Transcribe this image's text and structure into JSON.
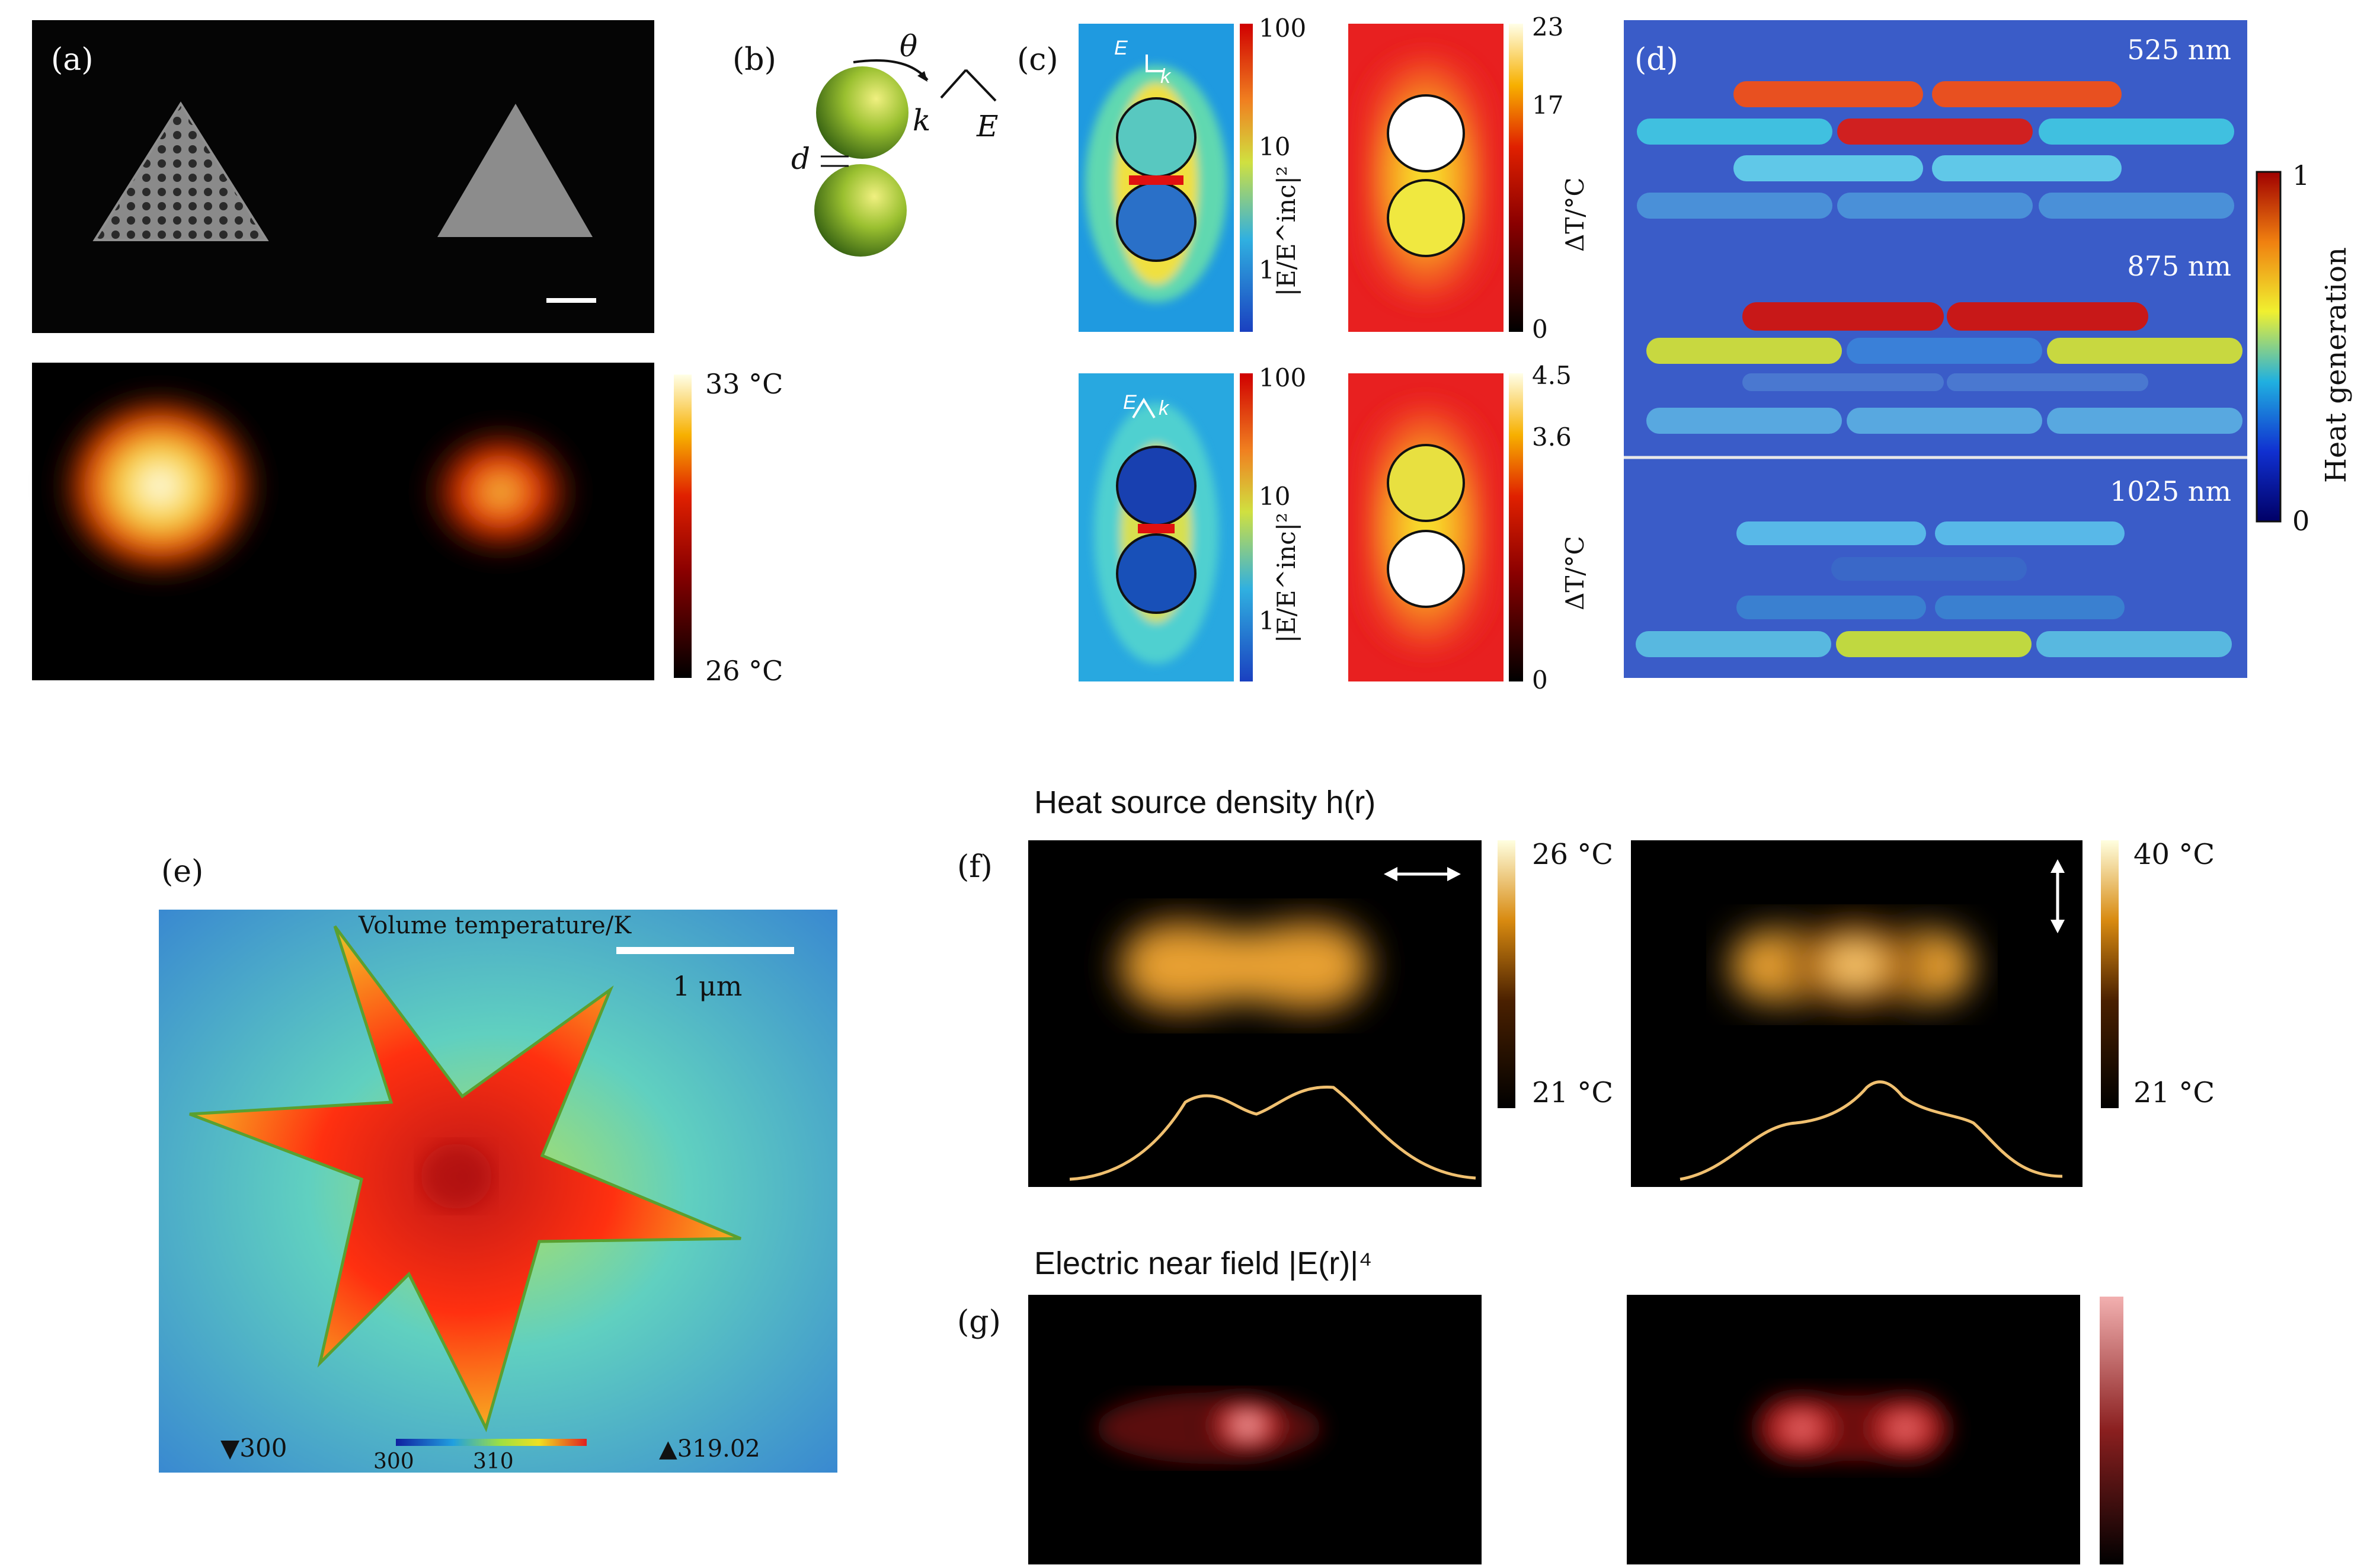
{
  "panels": {
    "a": {
      "label": "(a)",
      "colorbar": {
        "max": "33 °C",
        "min": "26 °C"
      }
    },
    "b": {
      "label": "(b)",
      "theta": "θ",
      "k": "k",
      "E": "E",
      "d": "d"
    },
    "c": {
      "label": "(c)",
      "top": {
        "arrow_E": "E",
        "arrow_k": "k",
        "field_ticks": [
          "100",
          "10",
          "1"
        ],
        "field_axis": "|E/E^inc|²",
        "temp_ticks": [
          "23",
          "17",
          "0"
        ],
        "temp_axis": "ΔT/°C"
      },
      "bottom": {
        "arrow_E": "E",
        "arrow_k": "k",
        "field_ticks": [
          "100",
          "10",
          "1"
        ],
        "field_axis": "|E/E^inc|²",
        "temp_ticks": [
          "4.5",
          "3.6",
          "0"
        ],
        "temp_axis": "ΔT/°C"
      }
    },
    "d": {
      "label": "(d)",
      "wavelengths": [
        "525 nm",
        "875 nm",
        "1025 nm"
      ],
      "colorbar": {
        "max": "1",
        "min": "0",
        "title": "Heat generation"
      }
    },
    "e": {
      "label": "(e)",
      "title": "Volume temperature/K",
      "scalebar": "1 μm",
      "min_marker": "▼300",
      "max_marker": "▲319.02",
      "cb_ticks": [
        "300",
        "310"
      ]
    },
    "f": {
      "label": "(f)",
      "title": "Heat source density h(r)",
      "left_colorbar": {
        "max": "26 °C",
        "min": "21 °C"
      },
      "right_colorbar": {
        "max": "40 °C",
        "min": "21 °C"
      }
    },
    "g": {
      "label": "(g)",
      "title": "Electric near field |E(r)|⁴"
    }
  },
  "colors": {
    "panel_bg": "#000000",
    "accent_red": "#d62020",
    "profile_line": "#f0c070"
  }
}
